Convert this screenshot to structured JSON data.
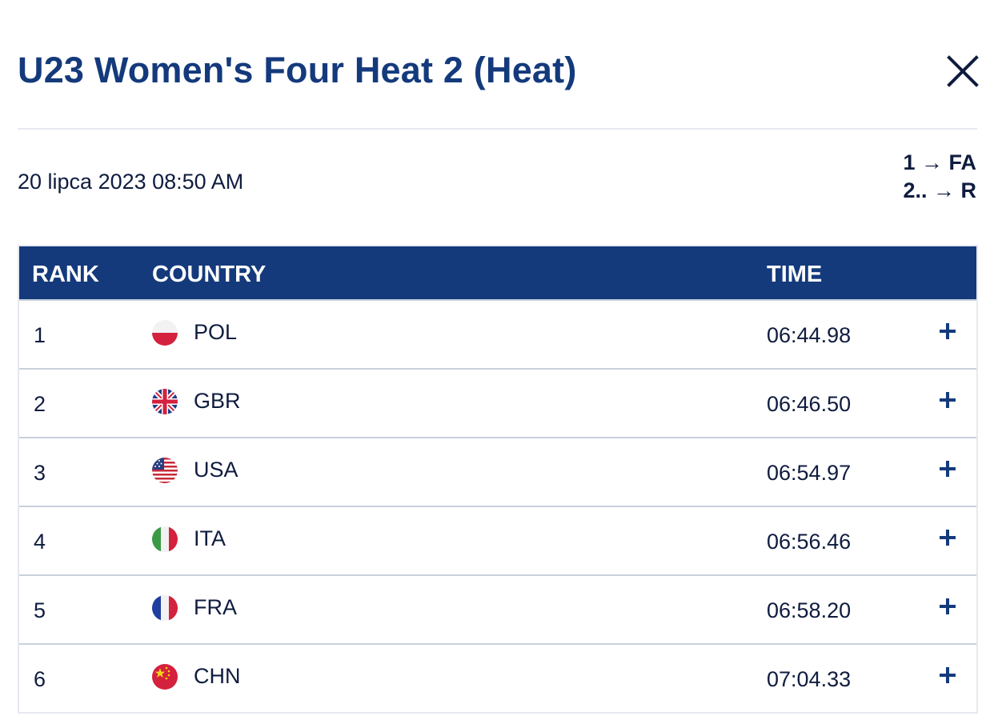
{
  "header": {
    "title": "U23 Women's Four Heat 2 (Heat)"
  },
  "info": {
    "datetime": "20 lipca 2023 08:50 AM",
    "progression": [
      "1 → FA",
      "2.. → R"
    ]
  },
  "table": {
    "columns": {
      "rank": "RANK",
      "country": "COUNTRY",
      "time": "TIME"
    },
    "rows": [
      {
        "rank": "1",
        "country": "POL",
        "time": "06:44.98",
        "flag": "poland-flag-icon"
      },
      {
        "rank": "2",
        "country": "GBR",
        "time": "06:46.50",
        "flag": "great-britain-flag-icon"
      },
      {
        "rank": "3",
        "country": "USA",
        "time": "06:54.97",
        "flag": "usa-flag-icon"
      },
      {
        "rank": "4",
        "country": "ITA",
        "time": "06:56.46",
        "flag": "italy-flag-icon"
      },
      {
        "rank": "5",
        "country": "FRA",
        "time": "06:58.20",
        "flag": "france-flag-icon"
      },
      {
        "rank": "6",
        "country": "CHN",
        "time": "07:04.33",
        "flag": "china-flag-icon"
      }
    ]
  },
  "colors": {
    "brand_blue": "#143a7c",
    "text": "#0f1c3f",
    "divider": "#e6e9ef"
  },
  "icons": {
    "close": "close-icon",
    "expand": "plus-icon"
  }
}
